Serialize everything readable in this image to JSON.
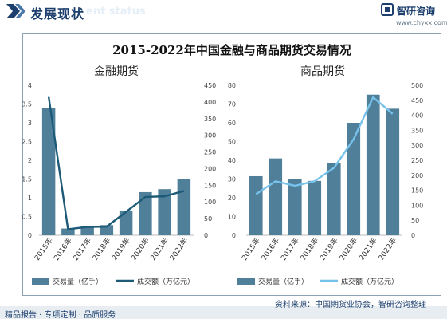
{
  "header": {
    "title": "发展现状",
    "ghost_text": "ent status",
    "logo_name": "智研咨询",
    "logo_url": "www.chyxx.com"
  },
  "main_title": "2015-2022年中国金融与商品期货交易情况",
  "footer": {
    "left": "精品报告 · 专项定制 · 品质服务",
    "source": "资料来源：中国期货业协会，智研咨询整理"
  },
  "colors": {
    "bar": "#4f7f99",
    "line_left": "#1d5a78",
    "line_right": "#77c2ea",
    "header": "#1c3f6e"
  },
  "chart_data": [
    {
      "type": "bar",
      "title": "金融期货",
      "categories": [
        "2015年",
        "2016年",
        "2017年",
        "2018年",
        "2019年",
        "2020年",
        "2021年",
        "2022年"
      ],
      "series": [
        {
          "name": "交易量（亿手）",
          "type": "bar",
          "axis": "left",
          "values": [
            3.4,
            0.18,
            0.24,
            0.27,
            0.66,
            1.15,
            1.23,
            1.5
          ]
        },
        {
          "name": "成交额（万亿元）",
          "type": "line",
          "axis": "right",
          "values": [
            415,
            18,
            25,
            26,
            70,
            115,
            117,
            133
          ]
        }
      ],
      "y_left": {
        "min": 0,
        "max": 4,
        "ticks": [
          0,
          0.5,
          1,
          1.5,
          2,
          2.5,
          3,
          3.5,
          4
        ]
      },
      "y_right": {
        "min": 0,
        "max": 450,
        "ticks": [
          0,
          50,
          100,
          150,
          200,
          250,
          300,
          350,
          400,
          450
        ]
      }
    },
    {
      "type": "bar",
      "title": "商品期货",
      "categories": [
        "2015年",
        "2016年",
        "2017年",
        "2018年",
        "2019年",
        "2020年",
        "2021年",
        "2022年"
      ],
      "series": [
        {
          "name": "交易量（亿手）",
          "type": "bar",
          "axis": "left",
          "values": [
            31.5,
            41,
            30,
            29,
            38.5,
            60,
            75,
            67.5
          ]
        },
        {
          "name": "成交额（万亿元）",
          "type": "line",
          "axis": "right",
          "values": [
            137,
            180,
            165,
            180,
            225,
            320,
            460,
            405
          ]
        }
      ],
      "y_left": {
        "min": 0,
        "max": 80,
        "ticks": [
          0,
          10,
          20,
          30,
          40,
          50,
          60,
          70,
          80
        ]
      },
      "y_right": {
        "min": 0,
        "max": 500,
        "ticks": [
          0,
          50,
          100,
          150,
          200,
          250,
          300,
          350,
          400,
          450,
          500
        ]
      }
    }
  ]
}
